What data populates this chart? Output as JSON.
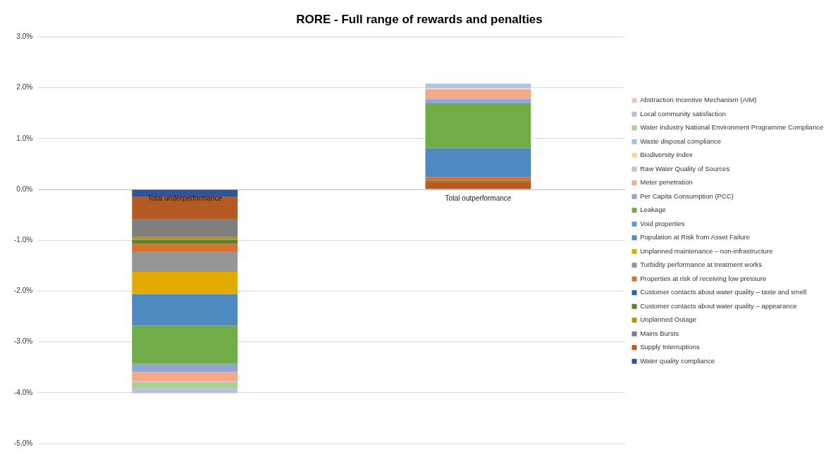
{
  "chart_data": {
    "type": "bar",
    "title": "RORE - Full range of rewards and penalties",
    "categories": [
      "Total underperformance",
      "Total outperformance"
    ],
    "stacked": true,
    "legend": "right",
    "grid": "y",
    "ylim": [
      -5,
      3
    ],
    "yticks": [
      {
        "value": -5,
        "label": "-5.0%"
      },
      {
        "value": -4,
        "label": "-4.0%"
      },
      {
        "value": -3,
        "label": "-3.0%"
      },
      {
        "value": -2,
        "label": "-2.0%"
      },
      {
        "value": -1,
        "label": "-1.0%"
      },
      {
        "value": 0,
        "label": "0.0%"
      },
      {
        "value": 1,
        "label": "1.0%"
      },
      {
        "value": 2,
        "label": "2.0%"
      },
      {
        "value": 3,
        "label": "3.0%"
      }
    ],
    "series": [
      {
        "name": "Water quality compliance",
        "color": "#2f5597",
        "values": [
          -0.14,
          0
        ]
      },
      {
        "name": "Supply Interruptions",
        "color": "#b55a22",
        "values": [
          -0.44,
          0.15
        ]
      },
      {
        "name": "Mains Bursts",
        "color": "#7f7f7f",
        "values": [
          -0.36,
          0
        ]
      },
      {
        "name": "Unplanned Outage",
        "color": "#bf9000",
        "values": [
          -0.05,
          0
        ]
      },
      {
        "name": "Customer contacts about water quality – appearance",
        "color": "#548235",
        "values": [
          -0.08,
          0.02
        ]
      },
      {
        "name": "Customer contacts about water quality – taste and smell",
        "color": "#2e5eb0",
        "values": [
          0,
          0
        ]
      },
      {
        "name": "Properties at risk of receiving low pressure",
        "color": "#d9712b",
        "values": [
          -0.15,
          0.07
        ]
      },
      {
        "name": "Turbidity performance at treatment works",
        "color": "#969696",
        "values": [
          -0.4,
          0
        ]
      },
      {
        "name": "Unplanned maintenance – non-infrastructure",
        "color": "#e2aa00",
        "values": [
          -0.44,
          0
        ]
      },
      {
        "name": "Population at Risk from Asset Failure",
        "color": "#4e8abf",
        "values": [
          -0.62,
          0.57
        ]
      },
      {
        "name": "Void properties",
        "color": "#5b9bd5",
        "values": [
          0,
          0
        ]
      },
      {
        "name": "Leakage",
        "color": "#70ad47",
        "values": [
          -0.75,
          0.88
        ]
      },
      {
        "name": "Per Capita Consumption (PCC)",
        "color": "#8fa5d6",
        "values": [
          -0.16,
          0.09
        ]
      },
      {
        "name": "Meter penetration",
        "color": "#f4a98a",
        "values": [
          -0.18,
          0.19
        ]
      },
      {
        "name": "Raw Water Quality of Sources",
        "color": "#c4c4c4",
        "values": [
          -0.04,
          null
        ]
      },
      {
        "name": "Biodiversity Index",
        "color": "#ffd980",
        "values": [
          0,
          0.02
        ]
      },
      {
        "name": "Waste disposal compliance",
        "color": "#9dc3e6",
        "values": [
          0,
          0
        ]
      },
      {
        "name": "Water Industry National Environment Programme Compliance",
        "color": "#a9d18e",
        "values": [
          -0.1,
          0
        ]
      },
      {
        "name": "Local community satisfaction",
        "color": "#b4c0e4",
        "values": [
          -0.1,
          0.09
        ]
      },
      {
        "name": "Abstraction Incentive Mechanism (AIM)",
        "color": "#f8c2b0",
        "values": [
          null,
          null
        ]
      }
    ]
  }
}
